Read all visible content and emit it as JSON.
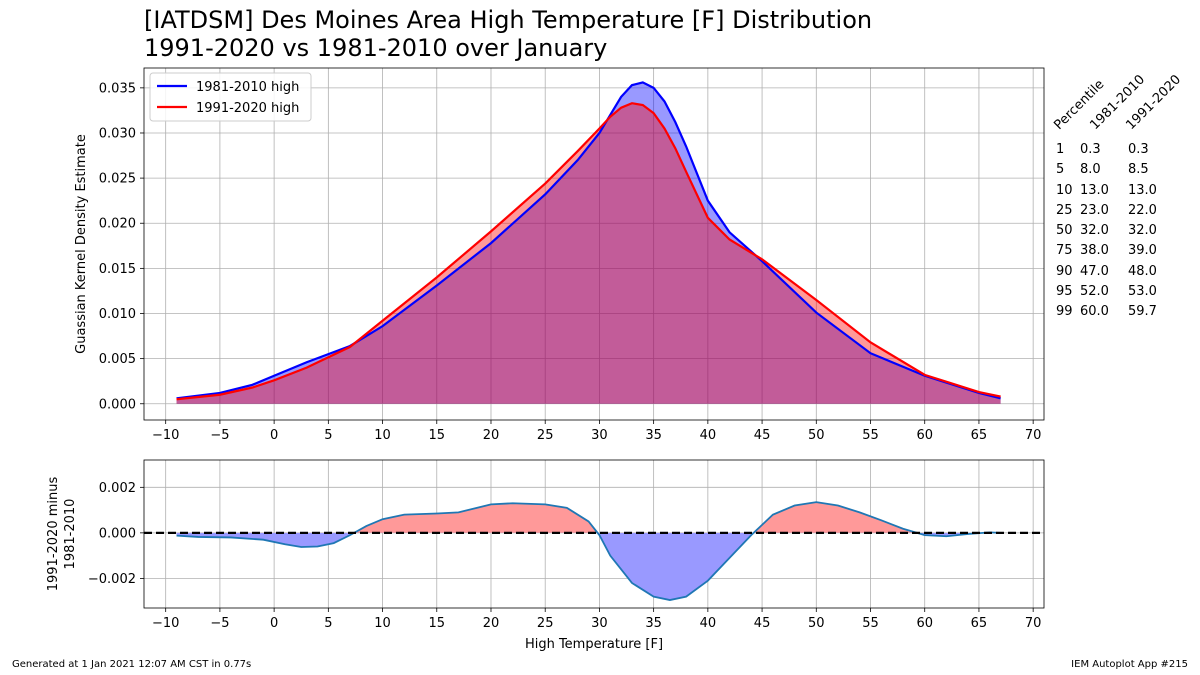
{
  "title": {
    "line1": "[IATDSM] Des Moines Area High Temperature [F] Distribution",
    "line2": "1991-2020 vs 1981-2010 over January"
  },
  "footer": {
    "left": "Generated at 1 Jan 2021 12:07 AM CST in 0.77s",
    "right": "IEM Autoplot App #215"
  },
  "colors": {
    "series_1981": "#0000ff",
    "series_1991": "#ff0000",
    "diff_line": "#1f77b4",
    "pos_fill": "#ff9999",
    "neg_fill": "#9999ff"
  },
  "percentiles": {
    "headers": [
      "Percentile",
      "1981-2010",
      "1991-2020"
    ],
    "rows": [
      [
        "1",
        "0.3",
        "0.3"
      ],
      [
        "5",
        "8.0",
        "8.5"
      ],
      [
        "10",
        "13.0",
        "13.0"
      ],
      [
        "25",
        "23.0",
        "22.0"
      ],
      [
        "50",
        "32.0",
        "32.0"
      ],
      [
        "75",
        "38.0",
        "39.0"
      ],
      [
        "90",
        "47.0",
        "48.0"
      ],
      [
        "95",
        "52.0",
        "53.0"
      ],
      [
        "99",
        "60.0",
        "59.7"
      ]
    ]
  },
  "chart_data": [
    {
      "type": "area",
      "xlim": [
        -12,
        71
      ],
      "ylim": [
        -0.0018,
        0.0372
      ],
      "xticks": [
        -10,
        -5,
        0,
        5,
        10,
        15,
        20,
        25,
        30,
        35,
        40,
        45,
        50,
        55,
        60,
        65,
        70
      ],
      "yticks": [
        "0.000",
        "0.005",
        "0.010",
        "0.015",
        "0.020",
        "0.025",
        "0.030",
        "0.035"
      ],
      "ylabel": "Guassian Kernel Density Estimate",
      "grid": true,
      "legend": "top-left",
      "x": [
        -9,
        -5,
        -2,
        0,
        3,
        7,
        10,
        15,
        20,
        25,
        28,
        30,
        31,
        32,
        33,
        34,
        35,
        36,
        37,
        38,
        40,
        42,
        45,
        50,
        55,
        60,
        65,
        67
      ],
      "series": [
        {
          "name": "1981-2010 high",
          "values": [
            0.0006,
            0.0012,
            0.0021,
            0.0031,
            0.0046,
            0.0064,
            0.0086,
            0.0131,
            0.0178,
            0.0232,
            0.027,
            0.03,
            0.032,
            0.034,
            0.0353,
            0.0356,
            0.035,
            0.0335,
            0.0312,
            0.0285,
            0.0225,
            0.019,
            0.0158,
            0.0101,
            0.0056,
            0.0031,
            0.0012,
            0.0006
          ]
        },
        {
          "name": "1991-2020 high",
          "values": [
            0.0005,
            0.001,
            0.0018,
            0.0026,
            0.004,
            0.0063,
            0.0092,
            0.014,
            0.0191,
            0.0244,
            0.028,
            0.0305,
            0.0318,
            0.0328,
            0.0333,
            0.0331,
            0.0322,
            0.0305,
            0.0283,
            0.0257,
            0.0206,
            0.0182,
            0.016,
            0.0115,
            0.0068,
            0.0032,
            0.0013,
            0.0008
          ]
        }
      ]
    },
    {
      "type": "area",
      "xlim": [
        -12,
        71
      ],
      "ylim": [
        -0.0033,
        0.0032
      ],
      "xticks": [
        -10,
        -5,
        0,
        5,
        10,
        15,
        20,
        25,
        30,
        35,
        40,
        45,
        50,
        55,
        60,
        65,
        70
      ],
      "yticks": [
        "−0.002",
        "0.000",
        "0.002"
      ],
      "ylabel": [
        "1991-2020 minus",
        "1981-2010"
      ],
      "xlabel": "High Temperature [F]",
      "grid": true,
      "baseline": 0,
      "x": [
        -9,
        -7,
        -4,
        -1,
        1,
        2.5,
        4,
        5.5,
        7,
        8.5,
        10,
        12,
        15,
        17,
        20,
        22,
        25,
        27,
        29,
        30,
        31,
        33,
        35,
        36.5,
        38,
        40,
        42,
        44,
        45,
        46,
        48,
        50,
        52,
        54,
        56,
        58,
        60,
        62,
        64,
        66,
        67
      ],
      "values": [
        -0.00012,
        -0.00018,
        -0.0002,
        -0.0003,
        -0.0005,
        -0.00062,
        -0.0006,
        -0.00045,
        -0.0001,
        0.0003,
        0.0006,
        0.0008,
        0.00085,
        0.0009,
        0.00125,
        0.0013,
        0.00125,
        0.0011,
        0.0005,
        -0.0001,
        -0.001,
        -0.0022,
        -0.0028,
        -0.00295,
        -0.0028,
        -0.0021,
        -0.0011,
        -0.0001,
        0.00035,
        0.0008,
        0.0012,
        0.00135,
        0.0012,
        0.0009,
        0.00055,
        0.00018,
        -0.0001,
        -0.00015,
        -5e-05,
        2e-05,
        0
      ]
    }
  ]
}
